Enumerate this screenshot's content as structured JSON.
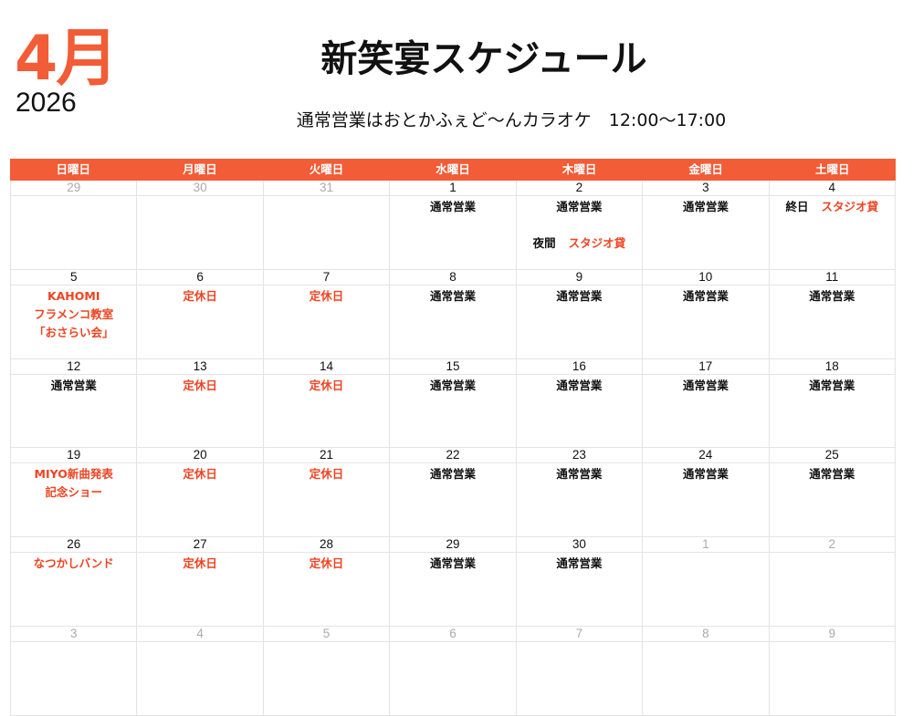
{
  "header": {
    "month": "4月",
    "year": "2026",
    "title": "新笑宴スケジュール",
    "subtitle": "通常営業はおとかふぇど〜んカラオケ　12:00〜17:00"
  },
  "colors": {
    "accent": "#f25c36",
    "event_red": "#ee4422",
    "other_month": "#aaaaaa"
  },
  "weekdays": [
    "日曜日",
    "月曜日",
    "火曜日",
    "水曜日",
    "木曜日",
    "金曜日",
    "土曜日"
  ],
  "weeks": [
    [
      {
        "num": "29",
        "other": true,
        "events": []
      },
      {
        "num": "30",
        "other": true,
        "events": []
      },
      {
        "num": "31",
        "other": true,
        "events": []
      },
      {
        "num": "1",
        "events": [
          {
            "text": "通常営業",
            "color": "black"
          }
        ]
      },
      {
        "num": "2",
        "events": [
          {
            "text": "通常営業",
            "color": "black"
          },
          {
            "label": "夜間",
            "text": "スタジオ貸",
            "color": "red",
            "gap": true
          }
        ]
      },
      {
        "num": "3",
        "events": [
          {
            "text": "通常営業",
            "color": "black"
          }
        ]
      },
      {
        "num": "4",
        "events": [
          {
            "label": "終日",
            "text": "スタジオ貸",
            "color": "red"
          }
        ]
      }
    ],
    [
      {
        "num": "5",
        "events": [
          {
            "text": "KAHOMI",
            "color": "red"
          },
          {
            "text": "フラメンコ教室",
            "color": "red"
          },
          {
            "text": "「おさらい会」",
            "color": "red"
          }
        ]
      },
      {
        "num": "6",
        "events": [
          {
            "text": "定休日",
            "color": "red"
          }
        ]
      },
      {
        "num": "7",
        "events": [
          {
            "text": "定休日",
            "color": "red"
          }
        ]
      },
      {
        "num": "8",
        "events": [
          {
            "text": "通常営業",
            "color": "black"
          }
        ]
      },
      {
        "num": "9",
        "events": [
          {
            "text": "通常営業",
            "color": "black"
          }
        ]
      },
      {
        "num": "10",
        "events": [
          {
            "text": "通常営業",
            "color": "black"
          }
        ]
      },
      {
        "num": "11",
        "events": [
          {
            "text": "通常営業",
            "color": "black"
          }
        ]
      }
    ],
    [
      {
        "num": "12",
        "events": [
          {
            "text": "通常営業",
            "color": "black"
          }
        ]
      },
      {
        "num": "13",
        "events": [
          {
            "text": "定休日",
            "color": "red"
          }
        ]
      },
      {
        "num": "14",
        "events": [
          {
            "text": "定休日",
            "color": "red"
          }
        ]
      },
      {
        "num": "15",
        "events": [
          {
            "text": "通常営業",
            "color": "black"
          }
        ]
      },
      {
        "num": "16",
        "events": [
          {
            "text": "通常営業",
            "color": "black"
          }
        ]
      },
      {
        "num": "17",
        "events": [
          {
            "text": "通常営業",
            "color": "black"
          }
        ]
      },
      {
        "num": "18",
        "events": [
          {
            "text": "通常営業",
            "color": "black"
          }
        ]
      }
    ],
    [
      {
        "num": "19",
        "events": [
          {
            "text": "MIYO新曲発表",
            "color": "red"
          },
          {
            "text": "記念ショー",
            "color": "red"
          }
        ]
      },
      {
        "num": "20",
        "events": [
          {
            "text": "定休日",
            "color": "red"
          }
        ]
      },
      {
        "num": "21",
        "events": [
          {
            "text": "定休日",
            "color": "red"
          }
        ]
      },
      {
        "num": "22",
        "events": [
          {
            "text": "通常営業",
            "color": "black"
          }
        ]
      },
      {
        "num": "23",
        "events": [
          {
            "text": "通常営業",
            "color": "black"
          }
        ]
      },
      {
        "num": "24",
        "events": [
          {
            "text": "通常営業",
            "color": "black"
          }
        ]
      },
      {
        "num": "25",
        "events": [
          {
            "text": "通常営業",
            "color": "black"
          }
        ]
      }
    ],
    [
      {
        "num": "26",
        "events": [
          {
            "text": "なつかしバンド",
            "color": "red"
          }
        ]
      },
      {
        "num": "27",
        "events": [
          {
            "text": "定休日",
            "color": "red"
          }
        ]
      },
      {
        "num": "28",
        "events": [
          {
            "text": "定休日",
            "color": "red"
          }
        ]
      },
      {
        "num": "29",
        "events": [
          {
            "text": "通常営業",
            "color": "black"
          }
        ]
      },
      {
        "num": "30",
        "events": [
          {
            "text": "通常営業",
            "color": "black"
          }
        ]
      },
      {
        "num": "1",
        "other": true,
        "events": []
      },
      {
        "num": "2",
        "other": true,
        "events": []
      }
    ],
    [
      {
        "num": "3",
        "other": true,
        "events": []
      },
      {
        "num": "4",
        "other": true,
        "events": []
      },
      {
        "num": "5",
        "other": true,
        "events": []
      },
      {
        "num": "6",
        "other": true,
        "events": []
      },
      {
        "num": "7",
        "other": true,
        "events": []
      },
      {
        "num": "8",
        "other": true,
        "events": []
      },
      {
        "num": "9",
        "other": true,
        "events": []
      }
    ]
  ]
}
